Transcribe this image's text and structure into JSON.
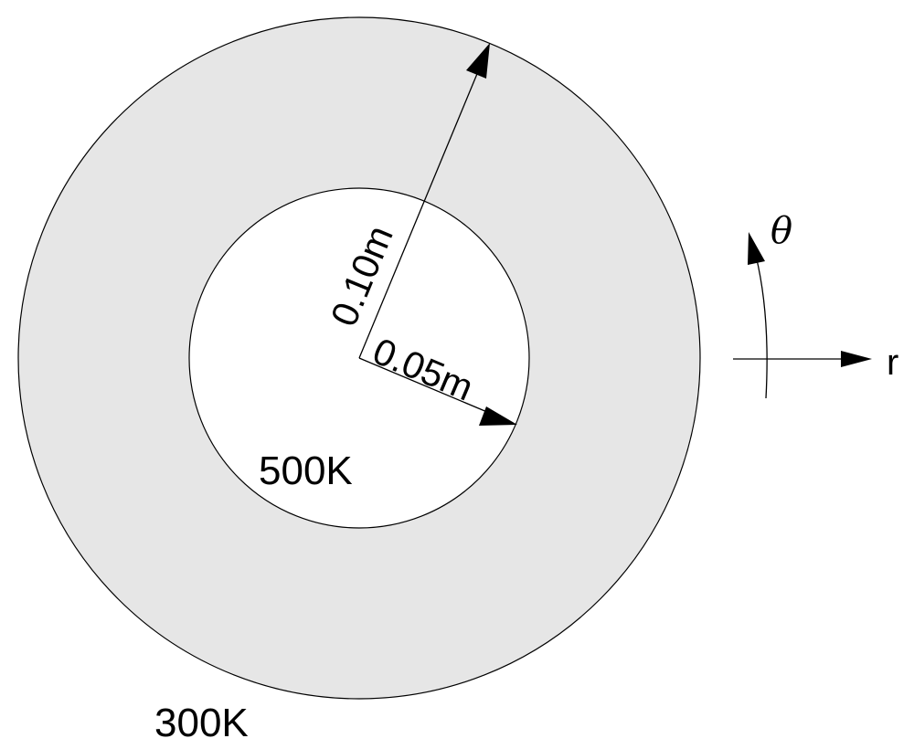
{
  "diagram": {
    "outer_radius_label": "0.10m",
    "inner_radius_label": "0.05m",
    "inner_boundary_temperature": "500K",
    "outer_boundary_temperature": "300K",
    "radial_axis_label": "r",
    "angular_axis_label": "θ",
    "colors": {
      "ring_fill": "#e6e6e6",
      "inner_fill": "#ffffff",
      "line": "#000000"
    }
  }
}
